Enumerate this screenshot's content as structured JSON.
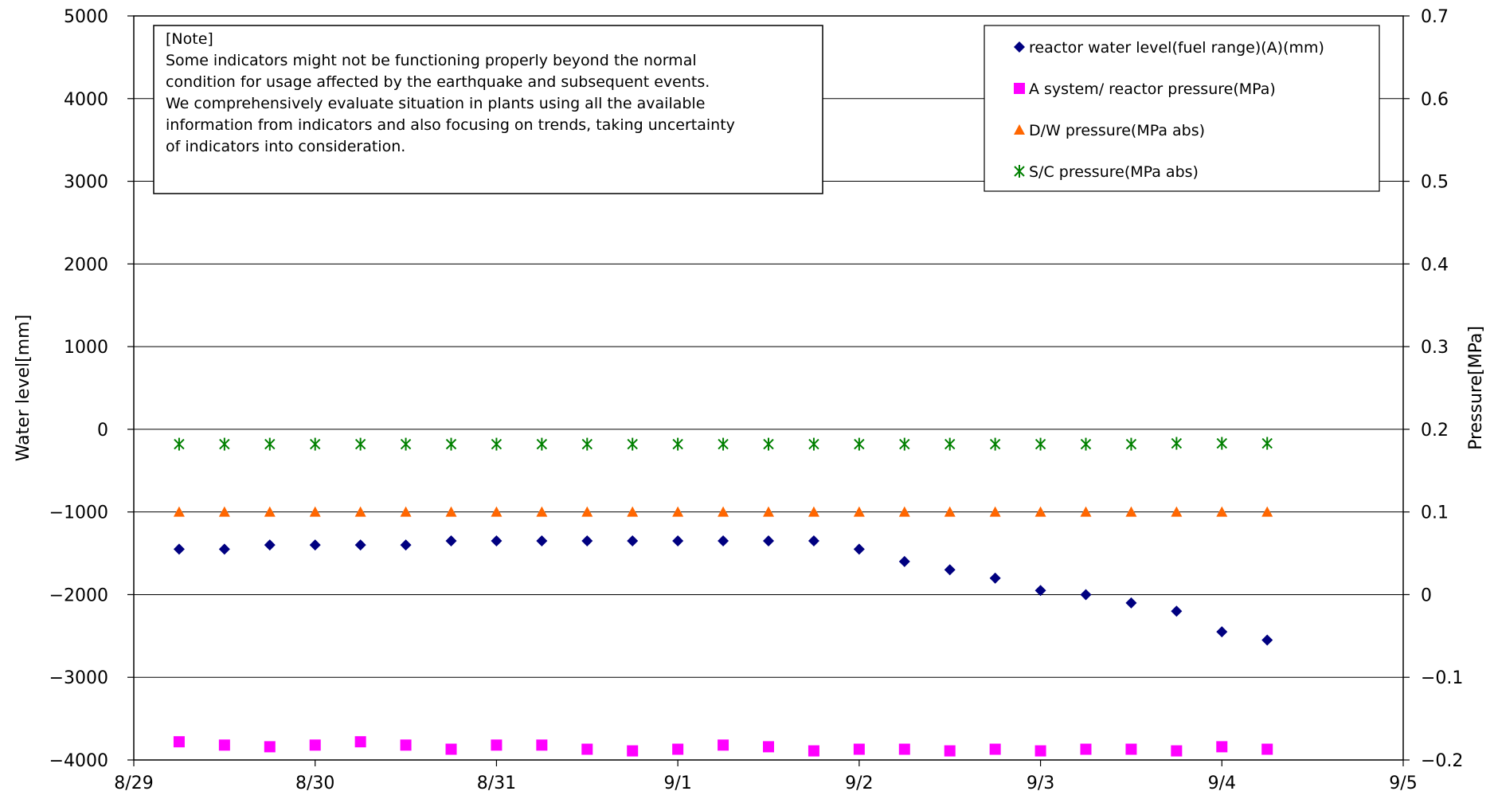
{
  "chart_data": {
    "type": "scatter",
    "xlabel": "",
    "ylabel": "Water level[mm]",
    "y2label": "Pressure[MPa]",
    "ylim": [
      -4000,
      5000
    ],
    "y2lim": [
      -0.2,
      0.7
    ],
    "xlim": [
      0,
      7
    ],
    "yticks": [
      "5000",
      "4000",
      "3000",
      "2000",
      "1000",
      "0",
      "−1000",
      "−2000",
      "−3000",
      "−4000"
    ],
    "y2ticks": [
      "0.7",
      "0.6",
      "0.5",
      "0.4",
      "0.3",
      "0.2",
      "0.1",
      "0",
      "−0.1",
      "−0.2"
    ],
    "xtick_labels": [
      "8/29",
      "8/30",
      "8/31",
      "9/1",
      "9/2",
      "9/3",
      "9/4",
      "9/5"
    ],
    "grid": true,
    "legend_position": "top-right",
    "note": {
      "title": "[Note]",
      "lines": [
        "Some indicators might not be functioning properly beyond the normal",
        "condition for usage affected by the earthquake and subsequent events.",
        "We comprehensively evaluate situation in plants using all the available",
        "information from indicators and also focusing on trends, taking uncertainty",
        "of indicators into consideration."
      ]
    },
    "x": [
      0.25,
      0.5,
      0.75,
      1.0,
      1.25,
      1.5,
      1.75,
      2.0,
      2.25,
      2.5,
      2.75,
      3.0,
      3.25,
      3.5,
      3.75,
      4.0,
      4.25,
      4.5,
      4.75,
      5.0,
      5.25,
      5.5,
      5.75,
      6.0,
      6.25
    ],
    "series": [
      {
        "name": "reactor water level(fuel range)(A)(mm)",
        "axis": "left",
        "marker": "diamond",
        "color": "#000080",
        "values": [
          -1450,
          -1450,
          -1400,
          -1400,
          -1400,
          -1400,
          -1350,
          -1350,
          -1350,
          -1350,
          -1350,
          -1350,
          -1350,
          -1350,
          -1350,
          -1450,
          -1600,
          -1700,
          -1800,
          -1950,
          -2000,
          -2100,
          -2200,
          -2450,
          -2550
        ]
      },
      {
        "name": "A system/ reactor pressure(MPa)",
        "axis": "right",
        "marker": "square",
        "color": "#ff00ff",
        "values": [
          -0.178,
          -0.182,
          -0.184,
          -0.182,
          -0.178,
          -0.182,
          -0.187,
          -0.182,
          -0.182,
          -0.187,
          -0.189,
          -0.187,
          -0.182,
          -0.184,
          -0.189,
          -0.187,
          -0.187,
          -0.189,
          -0.187,
          -0.189,
          -0.187,
          -0.187,
          -0.189,
          -0.184,
          -0.187
        ]
      },
      {
        "name": "D/W pressure(MPa abs)",
        "axis": "right",
        "marker": "triangle",
        "color": "#ff6600",
        "values": [
          0.1,
          0.1,
          0.1,
          0.1,
          0.1,
          0.1,
          0.1,
          0.1,
          0.1,
          0.1,
          0.1,
          0.1,
          0.1,
          0.1,
          0.1,
          0.1,
          0.1,
          0.1,
          0.1,
          0.1,
          0.1,
          0.1,
          0.1,
          0.1,
          0.1
        ]
      },
      {
        "name": "S/C pressure(MPa abs)",
        "axis": "right",
        "marker": "star",
        "color": "#008000",
        "values": [
          0.182,
          0.182,
          0.182,
          0.182,
          0.182,
          0.182,
          0.182,
          0.182,
          0.182,
          0.182,
          0.182,
          0.182,
          0.182,
          0.182,
          0.182,
          0.182,
          0.182,
          0.182,
          0.182,
          0.182,
          0.182,
          0.182,
          0.183,
          0.183,
          0.183
        ]
      }
    ]
  }
}
